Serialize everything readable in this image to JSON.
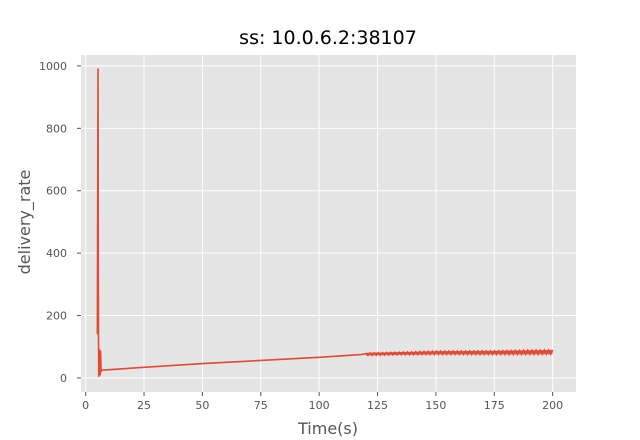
{
  "chart_data": {
    "type": "line",
    "title": "ss: 10.0.6.2:38107",
    "xlabel": "Time(s)",
    "ylabel": "delivery_rate",
    "xlim": [
      -2,
      210
    ],
    "ylim": [
      -45,
      1035
    ],
    "xticks": [
      0,
      25,
      50,
      75,
      100,
      125,
      150,
      175,
      200
    ],
    "yticks": [
      0,
      200,
      400,
      600,
      800,
      1000
    ],
    "grid": true,
    "style": "ggplot",
    "colors": {
      "background": "#e5e5e5",
      "grid": "#ffffff",
      "line": "#e24a33",
      "text": "#555555"
    },
    "series": [
      {
        "points": [
          [
            5.0,
            140
          ],
          [
            5.2,
            715
          ],
          [
            5.3,
            990
          ],
          [
            5.4,
            400
          ],
          [
            5.5,
            120
          ],
          [
            5.6,
            5
          ],
          [
            5.8,
            40
          ],
          [
            6.0,
            90
          ],
          [
            6.2,
            10
          ],
          [
            6.4,
            85
          ],
          [
            6.6,
            20
          ],
          [
            6.8,
            25
          ],
          [
            25,
            34
          ],
          [
            50,
            46
          ],
          [
            75,
            56
          ],
          [
            82,
            59
          ],
          [
            100,
            66
          ],
          [
            118,
            75
          ],
          [
            120,
            78
          ],
          [
            125,
            79
          ],
          [
            135,
            80
          ],
          [
            150,
            82
          ],
          [
            175,
            83
          ],
          [
            182,
            84
          ],
          [
            200,
            85
          ]
        ],
        "band": {
          "start": 120,
          "end": 200,
          "lower": [
            [
              120,
              72
            ],
            [
              135,
              74
            ],
            [
              150,
              75
            ],
            [
              175,
              75
            ],
            [
              182,
              75
            ],
            [
              200,
              76
            ]
          ],
          "upper": [
            [
              120,
              80
            ],
            [
              135,
              83
            ],
            [
              150,
              86
            ],
            [
              175,
              87
            ],
            [
              182,
              88
            ],
            [
              200,
              90
            ]
          ]
        }
      }
    ]
  }
}
